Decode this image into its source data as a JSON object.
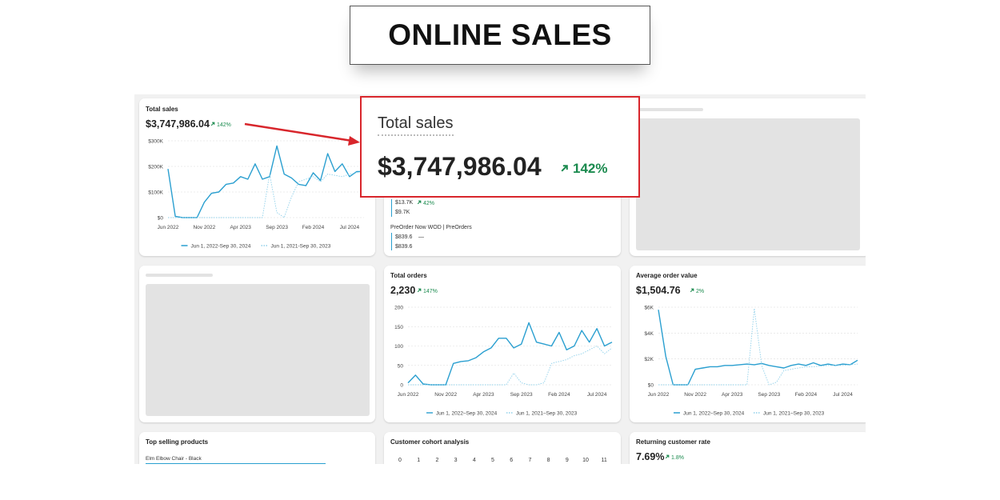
{
  "header": {
    "title": "ONLINE SALES"
  },
  "callout": {
    "title": "Total sales",
    "value": "$3,747,986.04",
    "change": "142%"
  },
  "total_sales": {
    "title": "Total sales",
    "value": "$3,747,986.04",
    "change": "142%",
    "chart": {
      "type": "line",
      "categories": [
        "Jun 2022",
        null,
        null,
        null,
        null,
        "Nov 2022",
        null,
        null,
        null,
        null,
        "Apr 2023",
        null,
        null,
        null,
        null,
        "Sep 2023",
        null,
        null,
        null,
        null,
        "Feb 2024",
        null,
        null,
        null,
        null,
        "Jul 2024",
        null,
        null
      ],
      "ylim": [
        0,
        300000
      ],
      "yticks": [
        {
          "value": 0,
          "label": "$0"
        },
        {
          "value": 100000,
          "label": "$100K"
        },
        {
          "value": 200000,
          "label": "$200K"
        },
        {
          "value": 300000,
          "label": "$300K"
        }
      ],
      "grid": true,
      "series": [
        {
          "name": "Jun 1, 2022-Sep 30, 2024",
          "color": "#2a9fd0",
          "dashed": false,
          "values": [
            190000,
            5000,
            0,
            0,
            0,
            60000,
            95000,
            100000,
            130000,
            135000,
            160000,
            150000,
            210000,
            150000,
            160000,
            280000,
            170000,
            155000,
            130000,
            125000,
            175000,
            145000,
            250000,
            180000,
            210000,
            160000,
            180000,
            180000
          ]
        },
        {
          "name": "Jun 1, 2021-Sep 30, 2023",
          "color": "#8fd0ea",
          "dashed": true,
          "values": [
            0,
            0,
            0,
            0,
            0,
            0,
            0,
            0,
            0,
            0,
            0,
            0,
            0,
            0,
            170000,
            20000,
            0,
            80000,
            140000,
            150000,
            160000,
            140000,
            170000,
            165000,
            160000,
            170000,
            175000,
            180000
          ]
        }
      ]
    }
  },
  "top_middle": {
    "value": "$13.7K",
    "change": "42%",
    "previous": "$9.7K",
    "item": "PreOrder Now WOD | PreOrders",
    "item_value": "$839.6",
    "item_change": "—",
    "item_previous": "$839.6"
  },
  "total_orders": {
    "title": "Total orders",
    "value": "2,230",
    "change": "147%",
    "chart": {
      "type": "line",
      "categories": [
        "Jun 2022",
        null,
        null,
        null,
        null,
        "Nov 2022",
        null,
        null,
        null,
        null,
        "Apr 2023",
        null,
        null,
        null,
        null,
        "Sep 2023",
        null,
        null,
        null,
        null,
        "Feb 2024",
        null,
        null,
        null,
        null,
        "Jul 2024",
        null,
        null
      ],
      "ylim": [
        0,
        200
      ],
      "yticks": [
        0,
        50,
        100,
        150,
        200
      ],
      "grid": true,
      "series": [
        {
          "name": "Jun 1, 2022–Sep 30, 2024",
          "color": "#2a9fd0",
          "dashed": false,
          "values": [
            5,
            25,
            2,
            0,
            0,
            0,
            55,
            60,
            62,
            70,
            85,
            95,
            120,
            120,
            95,
            105,
            160,
            110,
            105,
            100,
            135,
            90,
            100,
            140,
            110,
            145,
            100,
            110
          ]
        },
        {
          "name": "Jun 1, 2021–Sep 30, 2023",
          "color": "#8fd0ea",
          "dashed": true,
          "values": [
            0,
            0,
            0,
            0,
            0,
            0,
            0,
            0,
            0,
            0,
            0,
            0,
            0,
            0,
            30,
            5,
            0,
            0,
            5,
            55,
            60,
            65,
            75,
            80,
            90,
            100,
            80,
            95
          ]
        }
      ]
    }
  },
  "average_order_value": {
    "title": "Average order value",
    "value": "$1,504.76",
    "change": "2%",
    "chart": {
      "type": "line",
      "categories": [
        "Jun 2022",
        null,
        null,
        null,
        null,
        "Nov 2022",
        null,
        null,
        null,
        null,
        "Apr 2023",
        null,
        null,
        null,
        null,
        "Sep 2023",
        null,
        null,
        null,
        null,
        "Feb 2024",
        null,
        null,
        null,
        null,
        "Jul 2024",
        null,
        null
      ],
      "ylim": [
        0,
        6000
      ],
      "yticks": [
        {
          "value": 0,
          "label": "$0"
        },
        {
          "value": 2000,
          "label": "$2K"
        },
        {
          "value": 4000,
          "label": "$4K"
        },
        {
          "value": 6000,
          "label": "$6K"
        }
      ],
      "grid": true,
      "series": [
        {
          "name": "Jun 1, 2022–Sep 30, 2024",
          "color": "#2a9fd0",
          "dashed": false,
          "values": [
            5800,
            2200,
            0,
            0,
            0,
            1200,
            1300,
            1400,
            1400,
            1500,
            1500,
            1550,
            1600,
            1550,
            1650,
            1500,
            1400,
            1300,
            1500,
            1600,
            1500,
            1700,
            1500,
            1600,
            1500,
            1600,
            1550,
            1900
          ]
        },
        {
          "name": "Jun 1, 2021–Sep 30, 2023",
          "color": "#8fd0ea",
          "dashed": true,
          "values": [
            0,
            0,
            0,
            0,
            0,
            0,
            0,
            0,
            0,
            0,
            0,
            0,
            0,
            5900,
            1500,
            0,
            200,
            1100,
            1200,
            1300,
            1400,
            1400,
            1450,
            1500,
            1500,
            1500,
            1550,
            1600
          ]
        }
      ]
    }
  },
  "top_products": {
    "title": "Top selling products",
    "item": "Elm Elbow Chair - Black"
  },
  "cohort": {
    "title": "Customer cohort analysis",
    "columns": [
      0,
      1,
      2,
      3,
      4,
      5,
      6,
      7,
      8,
      9,
      10,
      11
    ]
  },
  "returning_rate": {
    "title": "Returning customer rate",
    "value": "7.69%",
    "change": "1.8%"
  }
}
